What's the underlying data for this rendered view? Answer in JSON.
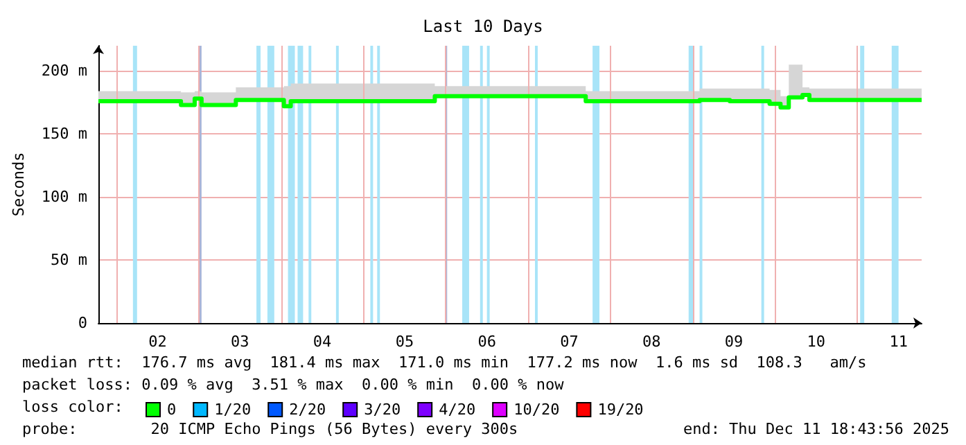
{
  "chart_data": {
    "type": "step",
    "title": "Last 10 Days",
    "ylabel": "Seconds",
    "x": [
      "2025-12-01T18:44",
      "2025-12-02T18:48",
      "2025-12-02T22:48",
      "2025-12-03T00:48",
      "2025-12-03T10:48",
      "2025-12-04T00:48",
      "2025-12-04T02:48",
      "2025-12-05T20:48",
      "2025-12-07T16:48",
      "2025-12-09T02:00",
      "2025-12-09T10:48",
      "2025-12-09T22:24",
      "2025-12-10T01:36",
      "2025-12-10T04:00",
      "2025-12-10T08:00",
      "2025-12-10T10:00",
      "2025-12-11T18:44"
    ],
    "series": [
      {
        "name": "0",
        "color": "#00ff00",
        "values": [
          176,
          173,
          178,
          173,
          177,
          172,
          176,
          180,
          176,
          177,
          176,
          174,
          171,
          179,
          181,
          177,
          177
        ],
        "lower": [
          176,
          173,
          178,
          173,
          177,
          172,
          176,
          180,
          176,
          177,
          176,
          174,
          171,
          179,
          181,
          177,
          177
        ],
        "upper": [
          184,
          183,
          184,
          183,
          187,
          188,
          190,
          188,
          184,
          186,
          186,
          185,
          180,
          205,
          187,
          186,
          185
        ]
      },
      {
        "name": "1/20",
        "color": "#00b8ff",
        "values": [
          null,
          null,
          null,
          null,
          null,
          null,
          null,
          null,
          null,
          null,
          null,
          null,
          null,
          null,
          null,
          null,
          null
        ]
      },
      {
        "name": "2/20",
        "color": "#0059ff",
        "values": [
          null,
          null,
          null,
          null,
          null,
          null,
          null,
          null,
          null,
          null,
          null,
          null,
          null,
          null,
          null,
          null,
          null
        ]
      },
      {
        "name": "3/20",
        "color": "#5e00ff",
        "values": [
          null,
          null,
          null,
          null,
          null,
          null,
          null,
          null,
          null,
          null,
          null,
          null,
          null,
          null,
          null,
          null,
          null
        ]
      },
      {
        "name": "4/20",
        "color": "#7e00ff",
        "values": [
          null,
          null,
          null,
          null,
          null,
          null,
          null,
          null,
          null,
          null,
          null,
          null,
          null,
          null,
          null,
          null,
          null
        ]
      },
      {
        "name": "10/20",
        "color": "#dd00ff",
        "values": [
          null,
          null,
          null,
          null,
          null,
          null,
          null,
          null,
          null,
          null,
          null,
          null,
          null,
          null,
          null,
          null,
          null
        ]
      },
      {
        "name": "19/20",
        "color": "#ff0000",
        "values": [
          null,
          null,
          null,
          null,
          null,
          null,
          null,
          null,
          null,
          null,
          null,
          null,
          null,
          null,
          null,
          null,
          null
        ]
      }
    ],
    "legend_title": "loss color:",
    "legend": "bottom",
    "xlim": [
      "2025-12-01T18:44",
      "2025-12-11T18:44"
    ],
    "xticks": [
      {
        "value": "2025-12-02T12:00",
        "label": "02"
      },
      {
        "value": "2025-12-03T12:00",
        "label": "03"
      },
      {
        "value": "2025-12-04T12:00",
        "label": "04"
      },
      {
        "value": "2025-12-05T12:00",
        "label": "05"
      },
      {
        "value": "2025-12-06T12:00",
        "label": "06"
      },
      {
        "value": "2025-12-07T12:00",
        "label": "07"
      },
      {
        "value": "2025-12-08T12:00",
        "label": "08"
      },
      {
        "value": "2025-12-09T12:00",
        "label": "09"
      },
      {
        "value": "2025-12-10T12:00",
        "label": "10"
      },
      {
        "value": "2025-12-11T12:00",
        "label": "11"
      }
    ],
    "ylim": [
      0,
      220
    ],
    "yticks": [
      {
        "value": 0,
        "label": "0"
      },
      {
        "value": 50,
        "label": "50 m"
      },
      {
        "value": 100,
        "label": "100 m"
      },
      {
        "value": 150,
        "label": "150 m"
      },
      {
        "value": 200,
        "label": "200 m"
      }
    ],
    "grid": true,
    "bands": [
      {
        "axis": "x",
        "from": "2025-12-02T04:48",
        "to": "2025-12-02T06:00",
        "color": "#a8e4f8"
      },
      {
        "axis": "x",
        "from": "2025-12-03T00:00",
        "to": "2025-12-03T00:48",
        "color": "#a8b4d8"
      },
      {
        "axis": "x",
        "from": "2025-12-03T16:48",
        "to": "2025-12-03T18:00",
        "color": "#a8e4f8"
      },
      {
        "axis": "x",
        "from": "2025-12-03T20:00",
        "to": "2025-12-03T22:00",
        "color": "#a8e4f8"
      },
      {
        "axis": "x",
        "from": "2025-12-04T02:00",
        "to": "2025-12-04T04:00",
        "color": "#a8e4f8"
      },
      {
        "axis": "x",
        "from": "2025-12-04T04:48",
        "to": "2025-12-04T06:24",
        "color": "#a8e4f8"
      },
      {
        "axis": "x",
        "from": "2025-12-04T08:00",
        "to": "2025-12-04T08:48",
        "color": "#a8e4f8"
      },
      {
        "axis": "x",
        "from": "2025-12-04T16:00",
        "to": "2025-12-04T16:48",
        "color": "#a8e4f8"
      },
      {
        "axis": "x",
        "from": "2025-12-05T02:00",
        "to": "2025-12-05T02:48",
        "color": "#a8e4f8"
      },
      {
        "axis": "x",
        "from": "2025-12-05T04:00",
        "to": "2025-12-05T04:48",
        "color": "#a8e4f8"
      },
      {
        "axis": "x",
        "from": "2025-12-06T00:00",
        "to": "2025-12-06T00:24",
        "color": "#a8b4d8"
      },
      {
        "axis": "x",
        "from": "2025-12-06T04:48",
        "to": "2025-12-06T06:48",
        "color": "#a8e4f8"
      },
      {
        "axis": "x",
        "from": "2025-12-06T10:00",
        "to": "2025-12-06T10:48",
        "color": "#a8e4f8"
      },
      {
        "axis": "x",
        "from": "2025-12-06T12:00",
        "to": "2025-12-06T12:48",
        "color": "#a8e4f8"
      },
      {
        "axis": "x",
        "from": "2025-12-07T02:00",
        "to": "2025-12-07T02:48",
        "color": "#a8e4f8"
      },
      {
        "axis": "x",
        "from": "2025-12-07T18:48",
        "to": "2025-12-07T20:48",
        "color": "#a8e4f8"
      },
      {
        "axis": "x",
        "from": "2025-12-08T22:48",
        "to": "2025-12-09T00:24",
        "color": "#a8e4f8"
      },
      {
        "axis": "x",
        "from": "2025-12-09T02:00",
        "to": "2025-12-09T02:48",
        "color": "#a8e4f8"
      },
      {
        "axis": "x",
        "from": "2025-12-09T20:00",
        "to": "2025-12-09T20:48",
        "color": "#a8e4f8"
      },
      {
        "axis": "x",
        "from": "2025-12-11T00:48",
        "to": "2025-12-11T02:00",
        "color": "#a8e4f8"
      },
      {
        "axis": "x",
        "from": "2025-12-11T10:00",
        "to": "2025-12-11T12:00",
        "color": "#a8e4f8"
      }
    ],
    "annotations": [
      "median rtt:  176.7 ms avg  181.4 ms max  171.0 ms min  177.2 ms now  1.6 ms sd  108.3   am/s",
      "packet loss: 0.09 % avg  3.51 % max  0.00 % min  0.00 % now",
      "probe:        20 ICMP Echo Pings (56 Bytes) every 300s",
      "end: Thu Dec 11 18:43:56 2025"
    ]
  }
}
